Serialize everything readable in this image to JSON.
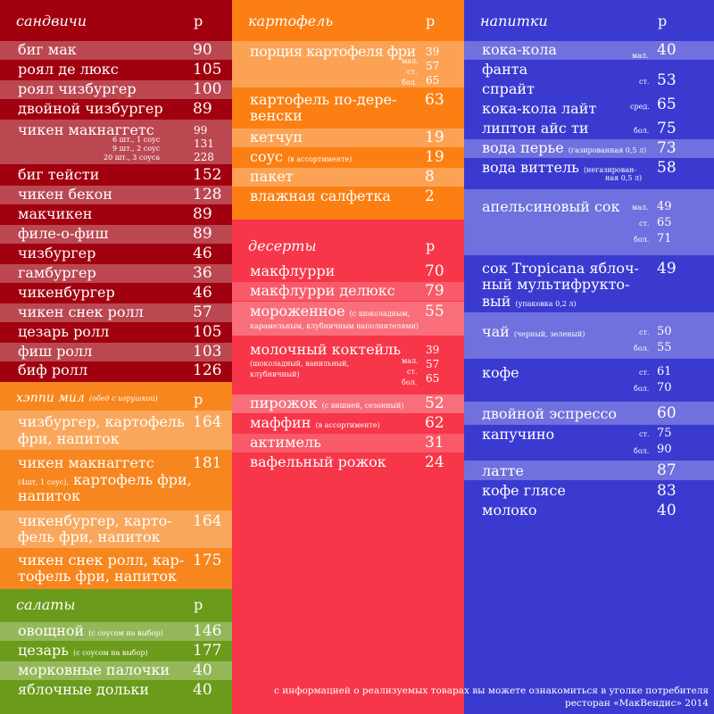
{
  "colors": {
    "sandwiches_bg": "#a1000f",
    "happy_meal_bg": "#f7861e",
    "salads_bg": "#6b9b1b",
    "potatoes_bg": "#fb7f12",
    "desserts_bg": "#f73649",
    "drinks_bg": "#3a3ad1"
  },
  "currency": "р",
  "sandwiches": {
    "title": "сандвичи",
    "items": [
      {
        "name": "биг мак",
        "price": "90"
      },
      {
        "name": "роял де люкс",
        "price": "105"
      },
      {
        "name": "роял чизбургер",
        "price": "100"
      },
      {
        "name": "двойной чизбургер",
        "price": "89"
      },
      {
        "name": "чикен макнаггетс",
        "price": "99",
        "price2": "131",
        "price3": "228",
        "note1": "6 шт., 1 соус",
        "note2": "9 шт., 2 соус",
        "note3": "20 шт., 3 соуса"
      },
      {
        "name": "биг тейсти",
        "price": "152"
      },
      {
        "name": "чикен бекон",
        "price": "128"
      },
      {
        "name": "макчикен",
        "price": "89"
      },
      {
        "name": "филе-о-фиш",
        "price": "89"
      },
      {
        "name": "чизбургер",
        "price": "46"
      },
      {
        "name": "гамбургер",
        "price": "36"
      },
      {
        "name": "чикенбургер",
        "price": "46"
      },
      {
        "name": "чикен снек ролл",
        "price": "57"
      },
      {
        "name": "цезарь ролл",
        "price": "105"
      },
      {
        "name": "фиш ролл",
        "price": "103"
      },
      {
        "name": "биф ролл",
        "price": "126"
      }
    ]
  },
  "happy_meal": {
    "title": "хэппи мил",
    "title_note": "(обед с игрушкой)",
    "items": [
      {
        "line1": "чизбургер, картофель",
        "line2": "фри, напиток",
        "price": "164"
      },
      {
        "line1": "чикен макнаггетс",
        "line2_note": "(4шт, 1 соус),",
        "line2": " картофель фри,",
        "line3": "напиток",
        "price": "181"
      },
      {
        "line1": "чикенбургер, карто-",
        "line2": "фель фри, напиток",
        "price": "164"
      },
      {
        "line1": "чикен снек ролл, кар-",
        "line2": "тофель фри, напиток",
        "price": "175"
      }
    ]
  },
  "salads": {
    "title": "салаты",
    "items": [
      {
        "name": "овощной",
        "note": "(с соусом на выбор)",
        "price": "146"
      },
      {
        "name": "цезарь",
        "note": "(с соусом на выбор)",
        "price": "177"
      },
      {
        "name": "морковные палочки",
        "price": "40"
      },
      {
        "name": "яблочные дольки",
        "price": "40"
      }
    ]
  },
  "potatoes": {
    "title": "картофель",
    "items": [
      {
        "name": "порция картофеля фри",
        "price": "39",
        "price2": "57",
        "price3": "65",
        "size2": "мал.",
        "size3": "ст.",
        "size4": "бол."
      },
      {
        "line1": "картофель по-дере-",
        "line2": "венски",
        "price": "63"
      },
      {
        "name": "кетчуп",
        "price": "19"
      },
      {
        "name": "соус",
        "note": "(в ассортименте)",
        "price": "19"
      },
      {
        "name": "пакет",
        "price": "8"
      },
      {
        "name": "влажная салфетка",
        "price": "2"
      }
    ]
  },
  "desserts": {
    "title": "десерты",
    "items": [
      {
        "name": "макфлурри",
        "price": "70"
      },
      {
        "name": "макфлурри делюкс",
        "price": "79"
      },
      {
        "name": "мороженное",
        "note": "(с шоколадным,",
        "note2": "карамельным, клубничным наполнителями)",
        "price": "55"
      },
      {
        "name": "молочный коктейль",
        "note": "(шоколадный, ванильный,",
        "note2": "клубничный)",
        "price": "39",
        "price2": "57",
        "price3": "65",
        "size1": "мал.",
        "size2": "ст.",
        "size3": "бол."
      },
      {
        "name": "пирожок",
        "note": "(с вишней, сезонный)",
        "price": "52"
      },
      {
        "name": "маффин",
        "note": "(в ассортименте)",
        "price": "62"
      },
      {
        "name": "актимель",
        "price": "31"
      },
      {
        "name": "вафельный рожок",
        "price": "24"
      }
    ]
  },
  "drinks": {
    "title": "напитки",
    "items": [
      {
        "name": "кока-кола",
        "price": "40",
        "size": "мал."
      },
      {
        "name": "фанта",
        "price": "53",
        "size": "ст."
      },
      {
        "name": "спрайт",
        "price": ""
      },
      {
        "name": "кока-кола лайт",
        "price": "65",
        "size": "сред."
      },
      {
        "name": "липтон айс ти",
        "price": "75",
        "size": "бол."
      },
      {
        "name": "вода перье",
        "note": "(газированная 0,5 л)",
        "price": "73"
      },
      {
        "name": "вода виттель",
        "note": "(негазирован-",
        "note2": "ная 0,5 л)",
        "price": "58"
      },
      {
        "name": "апельсиновый сок",
        "price": "49",
        "price2": "65",
        "price3": "71",
        "size1": "мал.",
        "size2": "ст.",
        "size3": "бол."
      },
      {
        "line1": "сок Tropicana яблоч-",
        "line2": "ный мультифрукто-",
        "line3": "вый",
        "note": "(упаковка 0,2 л)",
        "price": "49"
      },
      {
        "name": "чай",
        "note": "(черный, зеленый)",
        "price": "50",
        "price2": "55",
        "size1": "ст.",
        "size2": "бол."
      },
      {
        "name": "кофе",
        "price": "61",
        "price2": "70",
        "size1": "ст.",
        "size2": "бол."
      },
      {
        "name": "двойной эспрессо",
        "price": "60"
      },
      {
        "name": "капучино",
        "price": "75",
        "price2": "90",
        "size1": "ст.",
        "size2": "бол."
      },
      {
        "name": "латте",
        "price": "87"
      },
      {
        "name": "кофе глясе",
        "price": "83"
      },
      {
        "name": "молоко",
        "price": "40"
      }
    ]
  },
  "footer": {
    "line1": "с информацией о реализуемых товарах вы можете ознакомиться в уголке потребителя",
    "line2": "ресторан «МакВендис» 2014"
  }
}
